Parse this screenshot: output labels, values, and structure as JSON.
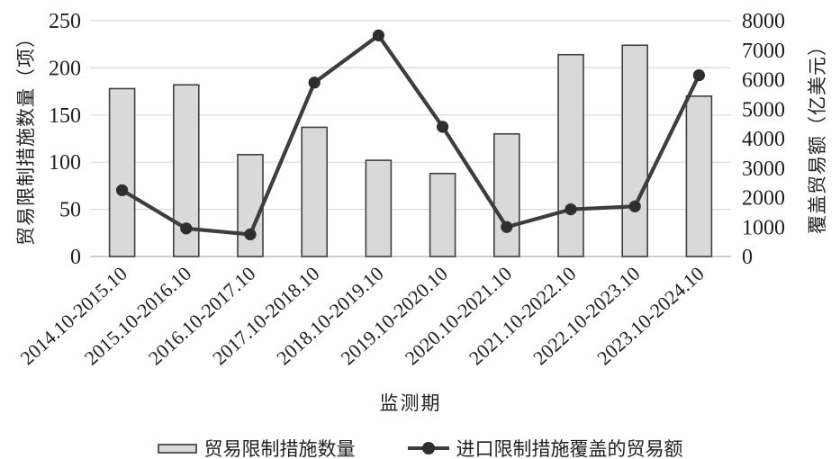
{
  "chart_data": {
    "type": "bar",
    "subtype": "combo-bar-line-dual-axis",
    "title": "",
    "xlabel": "监测期",
    "ylabel_left": "贸易限制措施数量（项）",
    "ylabel_right": "覆盖贸易额（亿美元）",
    "categories": [
      "2014.10-2015.10",
      "2015.10-2016.10",
      "2016.10-2017.10",
      "2017.10-2018.10",
      "2018.10-2019.10",
      "2019.10-2020.10",
      "2020.10-2021.10",
      "2021.10-2022.10",
      "2022.10-2023.10",
      "2023.10-2024.10"
    ],
    "series": [
      {
        "name": "贸易限制措施数量",
        "type": "bar",
        "axis": "left",
        "values": [
          178,
          182,
          108,
          137,
          102,
          88,
          130,
          214,
          224,
          170
        ]
      },
      {
        "name": "进口限制措施覆盖的贸易额",
        "type": "line",
        "axis": "right",
        "values": [
          2250,
          950,
          750,
          5900,
          7500,
          4400,
          1000,
          1600,
          1700,
          6150
        ]
      }
    ],
    "ylim_left": [
      0,
      250
    ],
    "ytick_left": 50,
    "ylim_right": [
      0,
      8000
    ],
    "ytick_right": 1000,
    "grid": true,
    "legend_position": "bottom",
    "colors": {
      "bar_fill": "#d9d9d9",
      "bar_stroke": "#404040",
      "line": "#3d3d3d",
      "marker": "#2e2e2e",
      "gridline": "#d9d9d9",
      "axis_line": "#bfbfbf",
      "text": "#1f1f1f"
    }
  }
}
